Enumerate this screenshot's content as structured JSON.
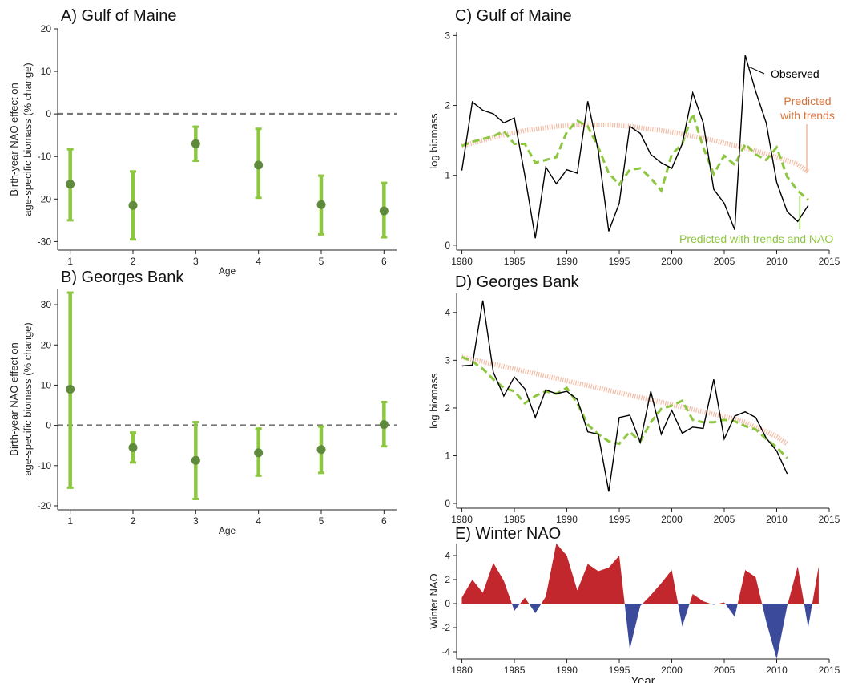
{
  "chart_data": [
    {
      "id": "A",
      "type": "scatter",
      "title": "A) Gulf of Maine",
      "xlabel": "Age",
      "ylabel": [
        "Birth-year NAO effect on",
        "age-specific biomass (% change)"
      ],
      "xlim": [
        0.8,
        6.2
      ],
      "ylim": [
        -32,
        20
      ],
      "xticks": [
        1,
        2,
        3,
        4,
        5,
        6
      ],
      "yticks": [
        -30,
        -20,
        -10,
        0,
        10,
        20
      ],
      "reference_line": 0,
      "x": [
        1,
        2,
        3,
        4,
        5,
        6
      ],
      "estimate": [
        -16.5,
        -21.5,
        -7,
        -12,
        -21.3,
        -22.8
      ],
      "lower": [
        -25,
        -29.5,
        -11,
        -19.7,
        -28.3,
        -29
      ],
      "upper": [
        -8.3,
        -13.5,
        -3,
        -3.5,
        -14.5,
        -16.2
      ],
      "colors": {
        "bar": "#8dc63f",
        "point": "#5f8a3c",
        "reference": "#777777"
      }
    },
    {
      "id": "B",
      "type": "scatter",
      "title": "B) Georges Bank",
      "xlabel": "Age",
      "ylabel": [
        "Birth-year NAO effect on",
        "age-specific biomass (% change)"
      ],
      "xlim": [
        0.8,
        6.2
      ],
      "ylim": [
        -21,
        34
      ],
      "xticks": [
        1,
        2,
        3,
        4,
        5,
        6
      ],
      "yticks": [
        -20,
        -10,
        0,
        10,
        20,
        30
      ],
      "reference_line": 0,
      "x": [
        1,
        2,
        3,
        4,
        5,
        6
      ],
      "estimate": [
        9,
        -5.5,
        -8.7,
        -6.8,
        -6,
        0.2
      ],
      "lower": [
        -15.5,
        -9.2,
        -18.3,
        -12.5,
        -11.8,
        -5.2
      ],
      "upper": [
        33,
        -1.8,
        0.8,
        -0.8,
        -0.3,
        5.8
      ],
      "colors": {
        "bar": "#8dc63f",
        "point": "#5f8a3c",
        "reference": "#777777"
      }
    },
    {
      "id": "C",
      "type": "line",
      "title": "C) Gulf of Maine",
      "xlabel": "",
      "ylabel": "log biomass",
      "xlim": [
        1979.5,
        2015
      ],
      "ylim": [
        -0.07,
        3.05
      ],
      "xticks": [
        1980,
        1985,
        1990,
        1995,
        2000,
        2005,
        2010,
        2015
      ],
      "yticks": [
        0,
        1,
        2,
        3
      ],
      "x": [
        1980,
        1981,
        1982,
        1983,
        1984,
        1985,
        1986,
        1987,
        1988,
        1989,
        1990,
        1991,
        1992,
        1993,
        1994,
        1995,
        1996,
        1997,
        1998,
        1999,
        2000,
        2001,
        2002,
        2003,
        2004,
        2005,
        2006,
        2007,
        2008,
        2009,
        2010,
        2011,
        2012,
        2013
      ],
      "series": [
        {
          "name": "Observed",
          "style": "solid",
          "color": "#000000",
          "values": [
            1.07,
            2.05,
            1.93,
            1.88,
            1.75,
            1.82,
            1.0,
            0.1,
            1.12,
            0.88,
            1.08,
            1.03,
            2.06,
            1.35,
            0.2,
            0.6,
            1.7,
            1.6,
            1.3,
            1.18,
            1.1,
            1.45,
            2.18,
            1.75,
            0.8,
            0.6,
            0.22,
            2.72,
            2.2,
            1.75,
            0.9,
            0.48,
            0.34,
            0.57
          ]
        },
        {
          "name": "Predicted with trends",
          "style": "thick-faded",
          "color": "#f2b8a0",
          "values": [
            1.42,
            1.46,
            1.5,
            1.54,
            1.58,
            1.61,
            1.64,
            1.66,
            1.68,
            1.7,
            1.71,
            1.72,
            1.72,
            1.72,
            1.72,
            1.71,
            1.7,
            1.68,
            1.66,
            1.64,
            1.62,
            1.59,
            1.56,
            1.53,
            1.5,
            1.46,
            1.43,
            1.39,
            1.35,
            1.31,
            1.26,
            1.21,
            1.16,
            1.05
          ]
        },
        {
          "name": "Predicted with trends and NAO",
          "style": "dashed",
          "color": "#8dc63f",
          "values": [
            1.42,
            1.48,
            1.52,
            1.56,
            1.63,
            1.45,
            1.45,
            1.18,
            1.22,
            1.26,
            1.62,
            1.78,
            1.7,
            1.4,
            1.03,
            0.87,
            1.08,
            1.1,
            0.96,
            0.78,
            1.3,
            1.45,
            1.88,
            1.4,
            1.02,
            1.28,
            1.15,
            1.45,
            1.3,
            1.22,
            1.4,
            0.98,
            0.78,
            0.65
          ]
        }
      ],
      "annotations": [
        {
          "text": "Observed",
          "color": "#000000"
        },
        {
          "text": [
            "Predicted",
            "with trends"
          ],
          "color": "#d8733a"
        },
        {
          "text": "Predicted with trends and NAO",
          "color": "#8dc63f"
        }
      ]
    },
    {
      "id": "D",
      "type": "line",
      "title": "D) Georges Bank",
      "xlabel": "",
      "ylabel": "log biomass",
      "xlim": [
        1979.5,
        2015
      ],
      "ylim": [
        -0.1,
        4.4
      ],
      "xticks": [
        1980,
        1985,
        1990,
        1995,
        2000,
        2005,
        2010,
        2015
      ],
      "yticks": [
        0,
        1,
        2,
        3,
        4
      ],
      "x": [
        1980,
        1981,
        1982,
        1983,
        1984,
        1985,
        1986,
        1987,
        1988,
        1989,
        1990,
        1991,
        1992,
        1993,
        1994,
        1995,
        1996,
        1997,
        1998,
        1999,
        2000,
        2001,
        2002,
        2003,
        2004,
        2005,
        2006,
        2007,
        2008,
        2009,
        2010,
        2011
      ],
      "series": [
        {
          "name": "Observed",
          "style": "solid",
          "color": "#000000",
          "values": [
            2.88,
            2.9,
            4.25,
            2.75,
            2.25,
            2.65,
            2.4,
            1.8,
            2.38,
            2.3,
            2.35,
            2.18,
            1.5,
            1.45,
            0.25,
            1.8,
            1.85,
            1.28,
            2.35,
            1.45,
            1.95,
            1.47,
            1.6,
            1.57,
            2.6,
            1.35,
            1.83,
            1.92,
            1.8,
            1.37,
            1.1,
            0.62
          ]
        },
        {
          "name": "Predicted with trends",
          "style": "thick-faded",
          "color": "#f2b8a0",
          "values": [
            3.07,
            3.02,
            2.97,
            2.92,
            2.87,
            2.82,
            2.77,
            2.72,
            2.67,
            2.62,
            2.57,
            2.52,
            2.47,
            2.42,
            2.37,
            2.32,
            2.27,
            2.22,
            2.17,
            2.12,
            2.07,
            2.02,
            1.97,
            1.92,
            1.87,
            1.82,
            1.77,
            1.7,
            1.6,
            1.5,
            1.4,
            1.25
          ]
        },
        {
          "name": "Predicted with trends and NAO",
          "style": "dashed",
          "color": "#8dc63f",
          "values": [
            3.07,
            2.98,
            2.82,
            2.6,
            2.42,
            2.35,
            2.1,
            2.25,
            2.35,
            2.3,
            2.42,
            2.1,
            1.65,
            1.45,
            1.3,
            1.25,
            1.5,
            1.3,
            1.7,
            1.98,
            2.05,
            2.15,
            1.75,
            1.7,
            1.7,
            1.75,
            1.72,
            1.62,
            1.55,
            1.35,
            1.18,
            0.95
          ]
        }
      ]
    },
    {
      "id": "E",
      "type": "area",
      "title": "E) Winter NAO",
      "xlabel": "Year",
      "ylabel": "Winter NAO",
      "xlim": [
        1979.5,
        2015
      ],
      "ylim": [
        -4.6,
        5.0
      ],
      "xticks": [
        1980,
        1985,
        1990,
        1995,
        2000,
        2005,
        2010,
        2015
      ],
      "yticks": [
        -4,
        -2,
        0,
        2,
        4
      ],
      "x": [
        1980,
        1981,
        1982,
        1983,
        1984,
        1985,
        1986,
        1987,
        1988,
        1989,
        1990,
        1991,
        1992,
        1993,
        1994,
        1995,
        1996,
        1997,
        1998,
        1999,
        2000,
        2001,
        2002,
        2003,
        2004,
        2005,
        2006,
        2007,
        2008,
        2009,
        2010,
        2011,
        2012,
        2013,
        2014
      ],
      "values": [
        0.5,
        2.0,
        0.9,
        3.4,
        1.9,
        -0.6,
        0.5,
        -0.8,
        0.6,
        5.0,
        4.0,
        1.1,
        3.3,
        2.7,
        3.0,
        4.0,
        -3.8,
        -0.2,
        0.7,
        1.7,
        2.8,
        -1.9,
        0.8,
        0.2,
        -0.1,
        0.1,
        -1.1,
        2.8,
        2.2,
        -1.5,
        -4.6,
        -0.2,
        3.1,
        -2.0,
        3.1
      ],
      "colors": {
        "positive": "#c1272d",
        "negative": "#3b4a9b"
      }
    }
  ]
}
